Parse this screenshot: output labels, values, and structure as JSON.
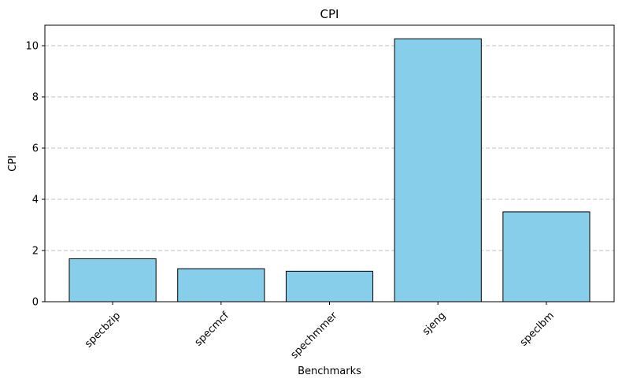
{
  "chart_data": {
    "type": "bar",
    "title": "CPI",
    "xlabel": "Benchmarks",
    "ylabel": "CPI",
    "categories": [
      "specbzip",
      "specmcf",
      "spechmmer",
      "sjeng",
      "speclbm"
    ],
    "values": [
      1.68,
      1.29,
      1.19,
      10.27,
      3.51
    ],
    "ylim": [
      0,
      10.8
    ],
    "yticks": [
      0,
      2,
      4,
      6,
      8,
      10
    ],
    "grid": "y-dashed",
    "bar_color": "#87ceeb",
    "bar_edge_color": "#000000",
    "grid_color": "#c0c0c0"
  }
}
